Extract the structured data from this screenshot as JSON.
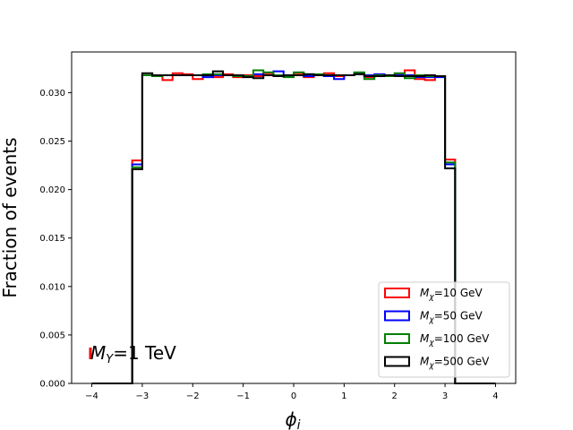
{
  "chart_data": {
    "type": "step-histogram",
    "title": "",
    "xlabel": "ϕ",
    "xlabel_sub": "i",
    "ylabel": "Fraction of events",
    "xlim": [
      -4.4,
      4.4
    ],
    "ylim": [
      0,
      0.0342
    ],
    "xticks": [
      -4,
      -3,
      -2,
      -1,
      0,
      1,
      2,
      3,
      4
    ],
    "xtick_labels": [
      "−4",
      "−3",
      "−2",
      "−1",
      "0",
      "1",
      "2",
      "3",
      "4"
    ],
    "yticks": [
      0.0,
      0.005,
      0.01,
      0.015,
      0.02,
      0.025,
      0.03
    ],
    "ytick_labels": [
      "0.000",
      "0.005",
      "0.010",
      "0.015",
      "0.020",
      "0.025",
      "0.030"
    ],
    "grid": false,
    "legend_position": "lower-right",
    "bin_edges": [
      -4.0,
      -3.2,
      -3.0,
      -2.8,
      -2.6,
      -2.4,
      -2.2,
      -2.0,
      -1.8,
      -1.6,
      -1.4,
      -1.2,
      -1.0,
      -0.8,
      -0.6,
      -0.4,
      -0.2,
      0.0,
      0.2,
      0.4,
      0.6,
      0.8,
      1.0,
      1.2,
      1.4,
      1.6,
      1.8,
      2.0,
      2.2,
      2.4,
      2.6,
      2.8,
      3.0,
      3.2,
      4.0
    ],
    "series": [
      {
        "name_main": "M",
        "name_sub": "χ",
        "name_rest": "=10 GeV",
        "color": "#ff0000",
        "values": [
          0.0,
          0.023,
          0.0318,
          0.0317,
          0.0313,
          0.032,
          0.0319,
          0.0314,
          0.0318,
          0.0316,
          0.0319,
          0.0316,
          0.0318,
          0.0317,
          0.032,
          0.0317,
          0.0318,
          0.032,
          0.0316,
          0.0318,
          0.032,
          0.0317,
          0.0318,
          0.0319,
          0.0316,
          0.0318,
          0.0317,
          0.0319,
          0.0323,
          0.0314,
          0.0313,
          0.0317,
          0.0231,
          0.0,
          0.0
        ]
      },
      {
        "name_main": "M",
        "name_sub": "χ",
        "name_rest": "=50 GeV",
        "color": "#0000ff",
        "values": [
          0.0,
          0.0226,
          0.0318,
          0.0317,
          0.0318,
          0.0318,
          0.0318,
          0.0318,
          0.0316,
          0.0318,
          0.0318,
          0.0318,
          0.0317,
          0.0319,
          0.0318,
          0.0322,
          0.0317,
          0.0318,
          0.0317,
          0.0318,
          0.0317,
          0.0314,
          0.0318,
          0.032,
          0.0318,
          0.0319,
          0.0317,
          0.0318,
          0.0318,
          0.0316,
          0.0316,
          0.0316,
          0.0226,
          0.0,
          0.0
        ]
      },
      {
        "name_main": "M",
        "name_sub": "χ",
        "name_rest": "=100 GeV",
        "color": "#008000",
        "values": [
          0.0,
          0.0223,
          0.0318,
          0.0317,
          0.0318,
          0.0318,
          0.0318,
          0.0318,
          0.0319,
          0.0319,
          0.0318,
          0.0317,
          0.0317,
          0.0323,
          0.0321,
          0.0318,
          0.0316,
          0.0321,
          0.0319,
          0.0319,
          0.0318,
          0.0318,
          0.0318,
          0.0321,
          0.0314,
          0.0318,
          0.0317,
          0.032,
          0.0315,
          0.0318,
          0.0317,
          0.0317,
          0.0228,
          0.0,
          0.0
        ]
      },
      {
        "name_main": "M",
        "name_sub": "χ",
        "name_rest": "=500 GeV",
        "color": "#000000",
        "values": [
          0.0,
          0.0221,
          0.032,
          0.0318,
          0.0318,
          0.0318,
          0.0318,
          0.0318,
          0.0318,
          0.0322,
          0.0318,
          0.0318,
          0.0316,
          0.0315,
          0.0318,
          0.0317,
          0.0318,
          0.0318,
          0.0319,
          0.0318,
          0.0318,
          0.0318,
          0.0318,
          0.0319,
          0.0317,
          0.0317,
          0.0318,
          0.0317,
          0.0317,
          0.0317,
          0.0318,
          0.0317,
          0.0222,
          0.0,
          0.0
        ]
      }
    ],
    "annotation": {
      "main": "M",
      "sub": "Y",
      "rest": "=1 TeV",
      "marker_color": "#ff0000"
    }
  }
}
